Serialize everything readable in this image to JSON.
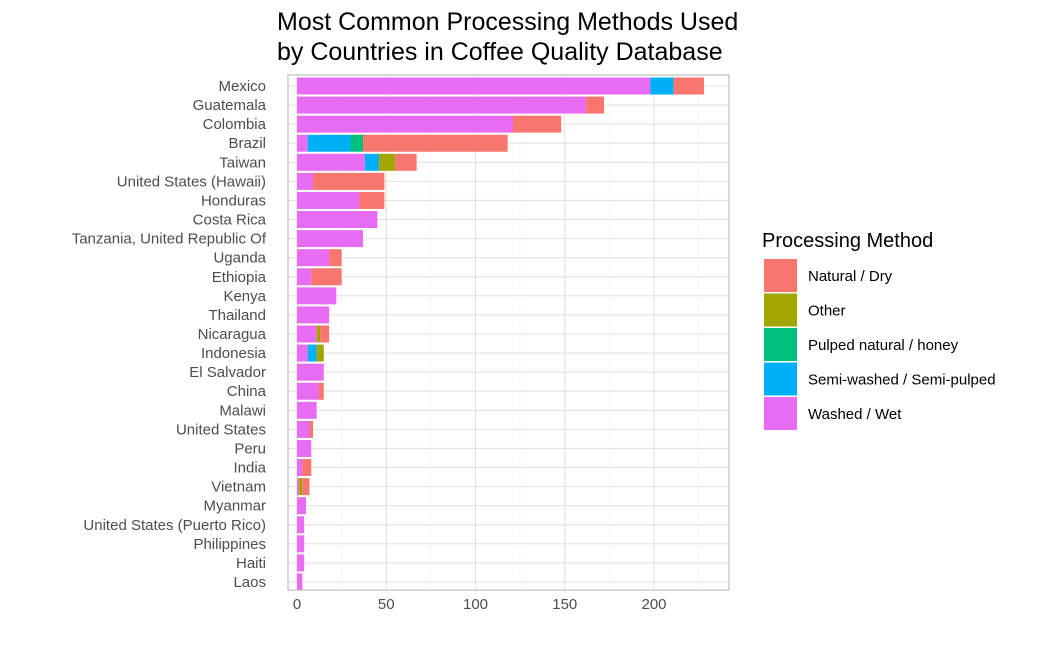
{
  "chart_data": {
    "type": "bar",
    "orientation": "horizontal",
    "stacked": true,
    "title": "Most Common Processing Methods Used by Countries in Coffee Quality Database",
    "title_lines": [
      "Most Common Processing Methods Used",
      "by Countries in Coffee Quality Database"
    ],
    "xlabel": "",
    "ylabel": "",
    "xlim": [
      0,
      230
    ],
    "xticks": [
      0,
      50,
      100,
      150,
      200
    ],
    "grid": true,
    "legend_position": "right",
    "legend_title": "Processing Method",
    "categories": [
      "Mexico",
      "Guatemala",
      "Colombia",
      "Brazil",
      "Taiwan",
      "United States (Hawaii)",
      "Honduras",
      "Costa Rica",
      "Tanzania, United Republic Of",
      "Uganda",
      "Ethiopia",
      "Kenya",
      "Thailand",
      "Nicaragua",
      "Indonesia",
      "El Salvador",
      "China",
      "Malawi",
      "United States",
      "Peru",
      "India",
      "Vietnam",
      "Myanmar",
      "United States (Puerto Rico)",
      "Philippines",
      "Haiti",
      "Laos"
    ],
    "stack_order": [
      "Washed / Wet",
      "Semi-washed / Semi-pulped",
      "Pulped natural / honey",
      "Other",
      "Natural / Dry"
    ],
    "series": [
      {
        "name": "Natural / Dry",
        "color": "#F8766D",
        "values": [
          17,
          10,
          27,
          81,
          12,
          40,
          14,
          0,
          0,
          7,
          17,
          0,
          0,
          5,
          0,
          0,
          3,
          0,
          2,
          0,
          5,
          4,
          0,
          0,
          0,
          0,
          0
        ]
      },
      {
        "name": "Other",
        "color": "#A3A500",
        "values": [
          0,
          0,
          0,
          0,
          9,
          0,
          0,
          0,
          0,
          0,
          0,
          0,
          0,
          2,
          4,
          0,
          0,
          0,
          0,
          0,
          0,
          2,
          0,
          0,
          0,
          0,
          0
        ]
      },
      {
        "name": "Pulped natural / honey",
        "color": "#00BF7D",
        "values": [
          0,
          0,
          0,
          7,
          0,
          0,
          0,
          0,
          0,
          0,
          0,
          0,
          0,
          0,
          0,
          0,
          0,
          0,
          0,
          0,
          0,
          0,
          0,
          0,
          0,
          0,
          0
        ]
      },
      {
        "name": "Semi-washed / Semi-pulped",
        "color": "#00B0F6",
        "values": [
          13,
          0,
          0,
          24,
          8,
          0,
          0,
          0,
          0,
          0,
          0,
          0,
          0,
          0,
          5,
          0,
          0,
          0,
          0,
          0,
          0,
          0,
          0,
          0,
          0,
          0,
          0
        ]
      },
      {
        "name": "Washed / Wet",
        "color": "#E76BF3",
        "values": [
          198,
          162,
          121,
          6,
          38,
          9,
          35,
          45,
          37,
          18,
          8,
          22,
          18,
          11,
          6,
          15,
          12,
          11,
          7,
          8,
          3,
          1,
          5,
          4,
          4,
          4,
          3
        ]
      }
    ]
  }
}
